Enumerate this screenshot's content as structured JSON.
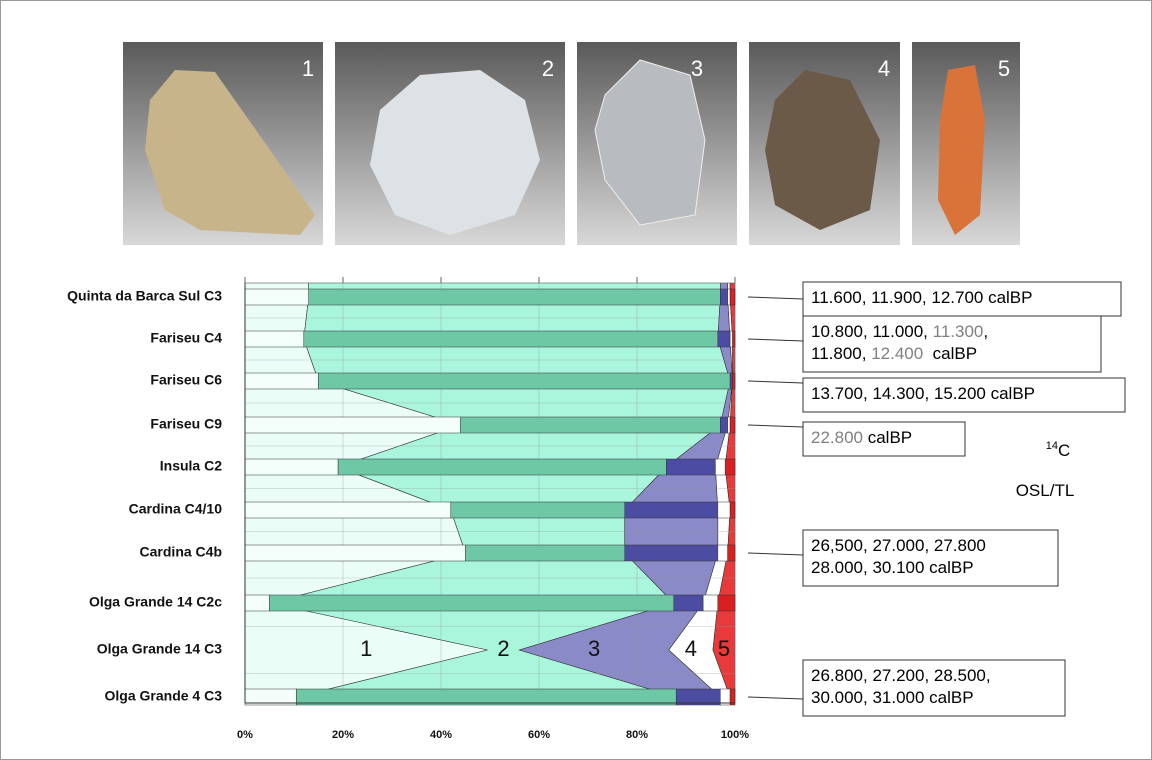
{
  "chart_data": {
    "type": "stacked-area-bar",
    "categories": [
      "Quinta da Barca Sul C3",
      "Fariseu C4",
      "Fariseu C6",
      "Fariseu C9",
      "Insula C2",
      "Cardina C4/10",
      "Cardina C4b",
      "Olga Grande 14 C2c",
      "Olga Grande 14 C3",
      "Olga Grande 4 C3"
    ],
    "series": [
      {
        "name": "1",
        "color": "#eafdf6",
        "bar_color": "#f4fffb",
        "values": [
          13,
          12,
          15,
          44,
          19,
          42,
          45,
          5,
          49.5,
          10.5
        ]
      },
      {
        "name": "2",
        "color": "#a9f6dd",
        "bar_color": "#6ec8a6",
        "values": [
          84,
          84.5,
          84,
          53,
          67,
          35.5,
          32.5,
          82.5,
          6.5,
          77.5
        ]
      },
      {
        "name": "3",
        "color": "#8a8ac8",
        "bar_color": "#4c4ca2",
        "values": [
          1.5,
          2.5,
          0.5,
          1.5,
          10,
          19,
          19,
          6,
          30.5,
          9
        ]
      },
      {
        "name": "4",
        "color": "#ffffff",
        "bar_color": "#ffffff",
        "values": [
          0.5,
          0.5,
          0,
          0.5,
          2,
          2.5,
          2,
          3,
          9,
          2
        ]
      },
      {
        "name": "5",
        "color": "#e83a3a",
        "bar_color": "#d82020",
        "values": [
          1,
          0.5,
          0.5,
          1,
          2,
          1,
          1.5,
          3.5,
          4.5,
          1
        ]
      }
    ],
    "series_labels_at": "Olga Grande 14 C3",
    "xlim": [
      0,
      100
    ],
    "xticks": [
      {
        "value": 0,
        "label": "0%"
      },
      {
        "value": 20,
        "label": "20%"
      },
      {
        "value": 40,
        "label": "40%"
      },
      {
        "value": 60,
        "label": "60%"
      },
      {
        "value": 80,
        "label": "80%"
      },
      {
        "value": 100,
        "label": "100%"
      }
    ],
    "grid": true,
    "annotations": [
      {
        "category": "Quinta da Barca Sul C3",
        "lines": [
          [
            {
              "text": "11.600, 11.900, 12.700 calBP"
            }
          ]
        ]
      },
      {
        "category": "Fariseu C4",
        "lines": [
          [
            {
              "text": "10.800, 11.000, "
            },
            {
              "text": "11.300",
              "color": "#808080"
            },
            {
              "text": ","
            }
          ],
          [
            {
              "text": "11.800, "
            },
            {
              "text": "12.400",
              "color": "#808080"
            },
            {
              "text": "  calBP"
            }
          ]
        ]
      },
      {
        "category": "Fariseu C6",
        "lines": [
          [
            {
              "text": "13.700, 14.300, 15.200 calBP"
            }
          ]
        ]
      },
      {
        "category": "Fariseu C9",
        "lines": [
          [
            {
              "text": "22.800",
              "color": "#808080"
            },
            {
              "text": " calBP"
            }
          ]
        ]
      },
      {
        "category": "Cardina C4b",
        "lines": [
          [
            {
              "text": "26,500, 27.000, 27.800"
            }
          ],
          [
            {
              "text": "28.000, 30.100 calBP"
            }
          ]
        ]
      },
      {
        "category": "Olga Grande 4 C3",
        "lines": [
          [
            {
              "text": "26.800, 27.200, 28.500,"
            }
          ],
          [
            {
              "text": "30.000, 31.000 calBP"
            }
          ]
        ]
      }
    ],
    "date_legend": [
      {
        "sup": "14",
        "label": "C",
        "color": "#808080"
      },
      {
        "label": "OSL/TL",
        "color": "#000000"
      }
    ]
  }
}
